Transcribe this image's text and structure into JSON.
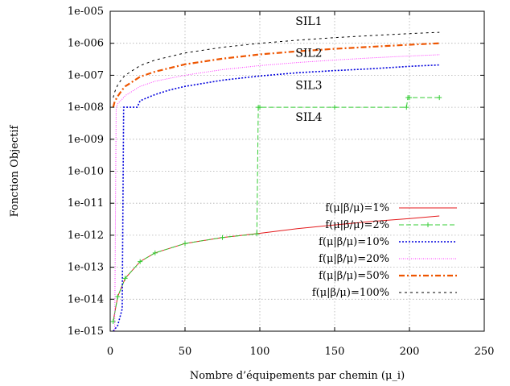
{
  "chart_data": {
    "type": "line",
    "xlabel": "Nombre d’équipements par chemin (μ_i)",
    "ylabel": "Fonction Objectif",
    "y_scale": "log",
    "xlim": [
      0,
      250
    ],
    "ylim": [
      1e-15,
      1e-05
    ],
    "x_ticks": [
      "0",
      "50",
      "100",
      "150",
      "200",
      "250"
    ],
    "x_tick_values": [
      0,
      50,
      100,
      150,
      200,
      250
    ],
    "y_ticks": [
      "1e-015",
      "1e-014",
      "1e-013",
      "1e-012",
      "1e-011",
      "1e-010",
      "1e-009",
      "1e-008",
      "1e-007",
      "1e-006",
      "1e-005"
    ],
    "y_tick_values": [
      1e-15,
      1e-14,
      1e-13,
      1e-12,
      1e-11,
      1e-10,
      1e-09,
      1e-08,
      1e-07,
      1e-06,
      1e-05
    ],
    "grid": true,
    "legend_position": "bottom-right",
    "annotations": [
      {
        "text": "SIL1",
        "x": 122,
        "y": 5e-06
      },
      {
        "text": "SIL2",
        "x": 122,
        "y": 5e-07
      },
      {
        "text": "SIL3",
        "x": 122,
        "y": 5e-08
      },
      {
        "text": "SIL4",
        "x": 122,
        "y": 5e-09
      }
    ],
    "series": [
      {
        "name": "f(μ|β/μ)=1%",
        "color": "#e41a1c",
        "style": "solid",
        "x": [
          2,
          5,
          10,
          20,
          30,
          50,
          75,
          100,
          125,
          150,
          175,
          200,
          220
        ],
        "y": [
          2e-15,
          1.2e-14,
          4.5e-14,
          1.5e-13,
          2.8e-13,
          5.5e-13,
          8.5e-13,
          1.15e-12,
          1.6e-12,
          2.1e-12,
          2.7e-12,
          3.3e-12,
          4e-12
        ]
      },
      {
        "name": "f(μ|β/μ)=2%",
        "color": "#33cc33",
        "style": "dashed-plus",
        "x": [
          2,
          5,
          10,
          20,
          30,
          50,
          75,
          98,
          99,
          100,
          150,
          198,
          199,
          200,
          220
        ],
        "y": [
          2e-15,
          1.2e-14,
          4.5e-14,
          1.5e-13,
          2.8e-13,
          5.5e-13,
          8.5e-13,
          1.1e-12,
          1e-08,
          1e-08,
          1e-08,
          1e-08,
          2e-08,
          2e-08,
          2e-08
        ]
      },
      {
        "name": "f(μ|β/μ)=10%",
        "color": "#0000dd",
        "style": "dotted",
        "x": [
          2,
          5,
          8,
          9,
          10,
          18,
          20,
          25,
          30,
          40,
          50,
          75,
          100,
          125,
          150,
          175,
          200,
          220
        ],
        "y": [
          1e-15,
          1.5e-15,
          5e-15,
          1e-08,
          1e-08,
          1e-08,
          1.6e-08,
          2e-08,
          2.5e-08,
          3.5e-08,
          4.5e-08,
          7e-08,
          9.5e-08,
          1.2e-07,
          1.4e-07,
          1.6e-07,
          1.9e-07,
          2.1e-07
        ]
      },
      {
        "name": "f(μ|β/μ)=20%",
        "color": "#ff33ff",
        "style": "fine-dotted",
        "x": [
          3,
          4,
          5,
          8,
          10,
          20,
          30,
          50,
          75,
          100,
          125,
          150,
          175,
          200,
          220
        ],
        "y": [
          1e-15,
          1e-08,
          1.3e-08,
          1.8e-08,
          2.3e-08,
          4.5e-08,
          6.5e-08,
          1e-07,
          1.5e-07,
          2e-07,
          2.5e-07,
          3e-07,
          3.5e-07,
          4e-07,
          4.4e-07
        ]
      },
      {
        "name": "f(μ|β/μ)=50%",
        "color": "#ee5500",
        "style": "dash-dot",
        "x": [
          2,
          3,
          5,
          8,
          10,
          20,
          30,
          50,
          75,
          100,
          125,
          150,
          175,
          200,
          220
        ],
        "y": [
          1e-08,
          1.5e-08,
          2.2e-08,
          3.5e-08,
          4.5e-08,
          9e-08,
          1.3e-07,
          2.2e-07,
          3.3e-07,
          4.5e-07,
          5.6e-07,
          6.7e-07,
          7.8e-07,
          9e-07,
          1e-06
        ]
      },
      {
        "name": "f(μ|β/μ)=100%",
        "color": "#000000",
        "style": "sparse-dotted",
        "x": [
          2,
          3,
          5,
          8,
          10,
          20,
          30,
          50,
          75,
          100,
          125,
          150,
          175,
          200,
          220
        ],
        "y": [
          2e-08,
          3e-08,
          5e-08,
          8e-08,
          1e-07,
          2e-07,
          3e-07,
          5e-07,
          7.5e-07,
          1e-06,
          1.25e-06,
          1.5e-06,
          1.75e-06,
          2e-06,
          2.2e-06
        ]
      }
    ]
  }
}
